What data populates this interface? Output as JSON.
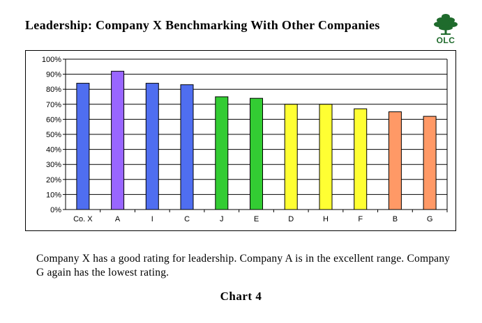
{
  "title": "Leadership:  Company X Benchmarking With Other Companies",
  "logo": {
    "text": "OLC",
    "icon": "tree-icon",
    "color": "#1f6b2c"
  },
  "caption": "Company X has a good rating for leadership.  Company A is in the excellent range.  Company G again has the lowest rating.",
  "chart_label": "Chart 4",
  "chart_data": {
    "type": "bar",
    "title": "",
    "xlabel": "",
    "ylabel": "",
    "ylim": [
      0,
      100
    ],
    "ytick_step": 10,
    "ytick_format": "percent",
    "grid": true,
    "legend": "none",
    "categories": [
      "Co. X",
      "A",
      "I",
      "C",
      "J",
      "E",
      "D",
      "H",
      "F",
      "B",
      "G"
    ],
    "values": [
      84,
      92,
      84,
      83,
      75,
      74,
      70,
      70,
      67,
      65,
      62
    ],
    "colors": [
      "#4f6ef0",
      "#9966ff",
      "#4f6ef0",
      "#4f6ef0",
      "#33cc33",
      "#33cc33",
      "#ffff33",
      "#ffff33",
      "#ffff33",
      "#ff9966",
      "#ff9966"
    ]
  }
}
